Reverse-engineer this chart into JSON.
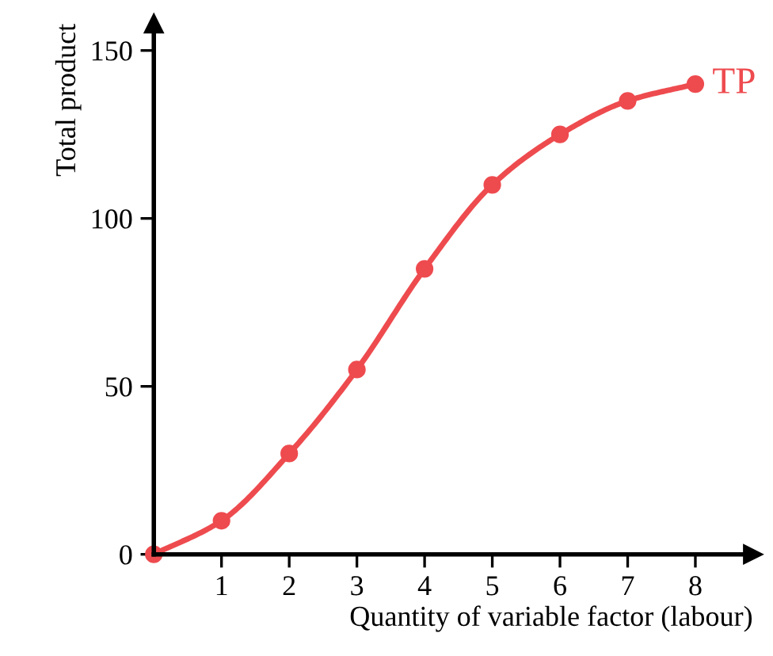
{
  "chart_data": {
    "type": "line",
    "xlabel": "Quantity of variable factor (labour)",
    "ylabel": "Total product",
    "x": [
      0,
      1,
      2,
      3,
      4,
      5,
      6,
      7,
      8
    ],
    "series": [
      {
        "name": "TP",
        "color": "#ee4b4f",
        "values": [
          0,
          10,
          30,
          55,
          85,
          110,
          125,
          135,
          140
        ]
      }
    ],
    "xlim": [
      0,
      8.85
    ],
    "ylim": [
      0,
      158
    ],
    "xticks": [
      1,
      2,
      3,
      4,
      5,
      6,
      7,
      8
    ],
    "yticks": [
      0,
      50,
      100,
      150
    ],
    "marker": "circle",
    "line_style": "solid",
    "grid": false,
    "legend": false
  }
}
